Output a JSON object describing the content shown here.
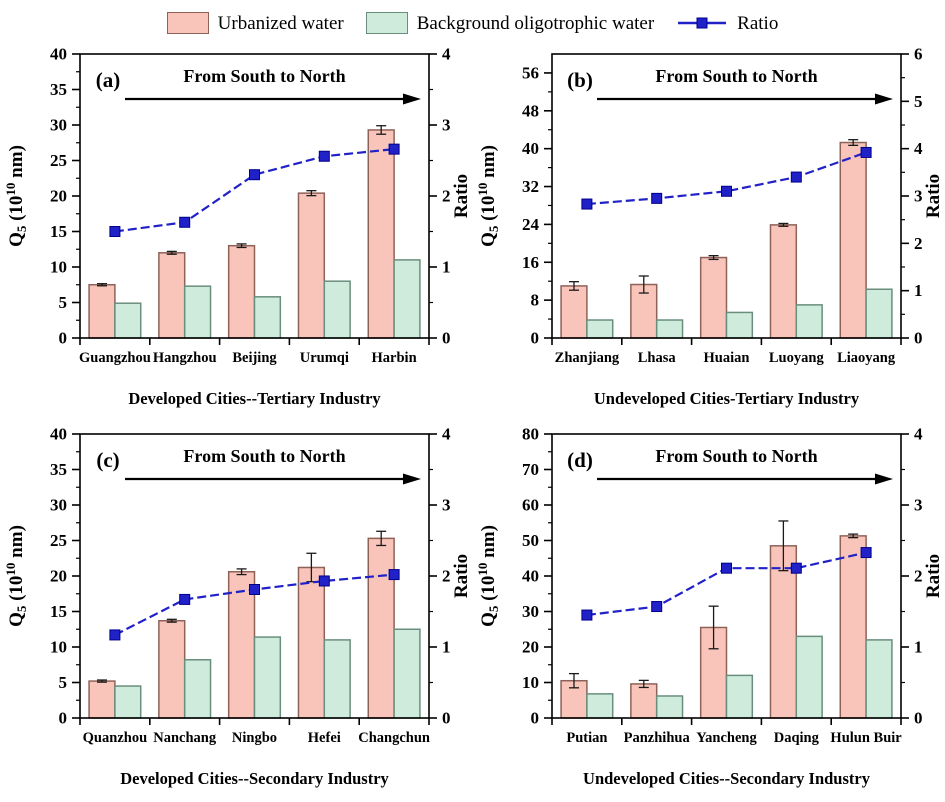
{
  "colors": {
    "urbanized_fill": "#F9C5BB",
    "urbanized_edge": "#8E6258",
    "background_fill": "#CFEBDC",
    "background_edge": "#6A8E7D",
    "ratio_line": "#2121C8",
    "ratio_marker_edge": "#00008B",
    "axis": "#000000",
    "error_bar": "#1A1A1A"
  },
  "legend": {
    "items": [
      {
        "label": "Urbanized water",
        "marker": "box",
        "series": "urbanized"
      },
      {
        "label": "Background oligotrophic water",
        "marker": "box",
        "series": "background"
      },
      {
        "label": "Ratio",
        "marker": "line",
        "series": "ratio"
      }
    ]
  },
  "axis_labels": {
    "left_plain": "Q5 (10^10 nm)",
    "left_parts": {
      "base": "Q",
      "sub": "5",
      "mid": " (10",
      "sup": "10",
      "end": " nm)"
    },
    "right": "Ratio"
  },
  "annotation": "From South to North",
  "chart_data": [
    {
      "panel_label": "(a)",
      "type": "bar",
      "title": "Developed Cities--Tertiary Industry",
      "categories": [
        "Guangzhou",
        "Hangzhou",
        "Beijing",
        "Urumqi",
        "Harbin"
      ],
      "series": [
        {
          "name": "Urbanized water",
          "type": "bar",
          "axis": "left",
          "values": [
            7.5,
            12.0,
            13.0,
            20.4,
            29.3
          ],
          "errors": [
            0.15,
            0.2,
            0.25,
            0.35,
            0.6
          ]
        },
        {
          "name": "Background oligotrophic water",
          "type": "bar",
          "axis": "left",
          "values": [
            4.9,
            7.3,
            5.8,
            8.0,
            11.0
          ]
        },
        {
          "name": "Ratio",
          "type": "line",
          "axis": "right",
          "values": [
            1.5,
            1.63,
            2.3,
            2.56,
            2.66
          ]
        }
      ],
      "ylim": [
        0,
        40
      ],
      "ytick_step": 5,
      "ytick_max": 40,
      "y2lim": [
        0,
        4
      ],
      "y2tick_step": 1,
      "grid": false,
      "legend_position": "top"
    },
    {
      "panel_label": "(b)",
      "type": "bar",
      "title": "Undeveloped Cities-Tertiary Industry",
      "categories": [
        "Zhanjiang",
        "Lhasa",
        "Huaian",
        "Luoyang",
        "Liaoyang"
      ],
      "series": [
        {
          "name": "Urbanized water",
          "type": "bar",
          "axis": "left",
          "values": [
            11.0,
            11.3,
            17.0,
            23.9,
            41.3
          ],
          "errors": [
            0.9,
            1.8,
            0.4,
            0.3,
            0.6
          ]
        },
        {
          "name": "Background oligotrophic water",
          "type": "bar",
          "axis": "left",
          "values": [
            3.8,
            3.8,
            5.4,
            7.0,
            10.3
          ]
        },
        {
          "name": "Ratio",
          "type": "line",
          "axis": "right",
          "values": [
            2.83,
            2.95,
            3.1,
            3.4,
            3.92
          ]
        }
      ],
      "ylim": [
        0,
        60
      ],
      "ytick_step": 8,
      "ytick_max": 56,
      "y2lim": [
        0,
        6
      ],
      "y2tick_step": 1,
      "grid": false,
      "legend_position": "top"
    },
    {
      "panel_label": "(c)",
      "type": "bar",
      "title": "Developed Cities--Secondary Industry",
      "categories": [
        "Quanzhou",
        "Nanchang",
        "Ningbo",
        "Hefei",
        "Changchun"
      ],
      "series": [
        {
          "name": "Urbanized water",
          "type": "bar",
          "axis": "left",
          "values": [
            5.2,
            13.7,
            20.6,
            21.2,
            25.3
          ],
          "errors": [
            0.15,
            0.2,
            0.4,
            2.0,
            1.0
          ]
        },
        {
          "name": "Background oligotrophic water",
          "type": "bar",
          "axis": "left",
          "values": [
            4.5,
            8.2,
            11.4,
            11.0,
            12.5
          ]
        },
        {
          "name": "Ratio",
          "type": "line",
          "axis": "right",
          "values": [
            1.17,
            1.67,
            1.81,
            1.93,
            2.02
          ]
        }
      ],
      "ylim": [
        0,
        40
      ],
      "ytick_step": 5,
      "ytick_max": 40,
      "y2lim": [
        0,
        4
      ],
      "y2tick_step": 1,
      "grid": false,
      "legend_position": "top"
    },
    {
      "panel_label": "(d)",
      "type": "bar",
      "title": "Undeveloped Cities--Secondary Industry",
      "categories": [
        "Putian",
        "Panzhihua",
        "Yancheng",
        "Daqing",
        "Hulun Buir"
      ],
      "series": [
        {
          "name": "Urbanized water",
          "type": "bar",
          "axis": "left",
          "values": [
            10.5,
            9.6,
            25.5,
            48.5,
            51.3
          ],
          "errors": [
            2.0,
            1.0,
            6.0,
            7.0,
            0.5
          ]
        },
        {
          "name": "Background oligotrophic water",
          "type": "bar",
          "axis": "left",
          "values": [
            6.8,
            6.2,
            12.0,
            23.0,
            22.0
          ]
        },
        {
          "name": "Ratio",
          "type": "line",
          "axis": "right",
          "values": [
            1.45,
            1.57,
            2.11,
            2.11,
            2.33
          ]
        }
      ],
      "ylim": [
        0,
        80
      ],
      "ytick_step": 10,
      "ytick_max": 80,
      "y2lim": [
        0,
        4
      ],
      "y2tick_step": 1,
      "grid": false,
      "legend_position": "top"
    }
  ]
}
